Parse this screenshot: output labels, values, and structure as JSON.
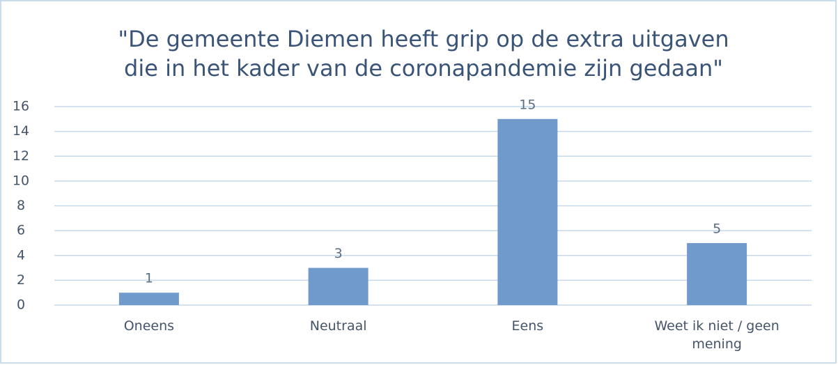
{
  "chart_data": {
    "type": "bar",
    "title": [
      "\"De gemeente Diemen heeft grip op de extra uitgaven",
      "die in het kader van de coronapandemie zijn gedaan\""
    ],
    "categories": [
      "Oneens",
      "Neutraal",
      "Eens",
      "Weet ik niet / geen mening"
    ],
    "values": [
      1,
      3,
      15,
      5
    ],
    "color": "#7099cc",
    "ylim": [
      0,
      16
    ],
    "yticks": [
      0,
      2,
      4,
      6,
      8,
      10,
      12,
      14,
      16
    ],
    "grid": true
  }
}
